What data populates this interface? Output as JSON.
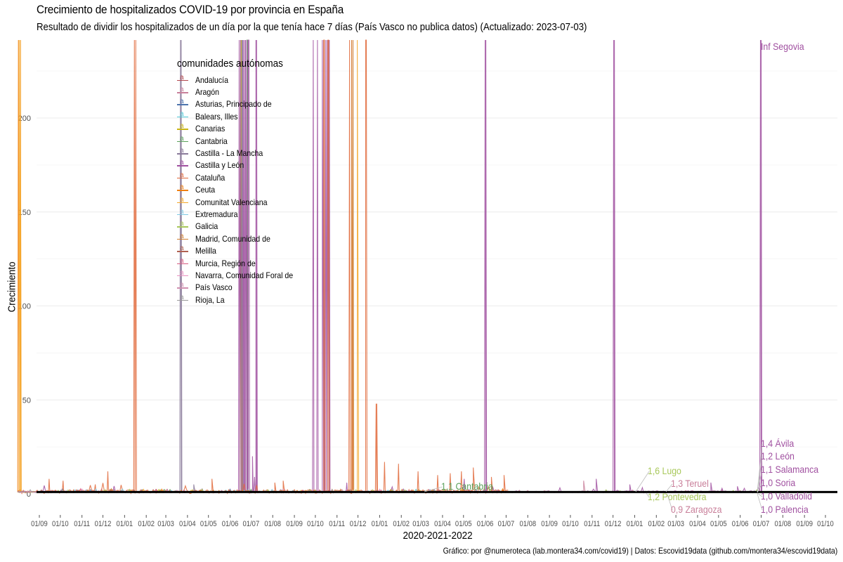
{
  "title": "Crecimiento de hospitalizados COVID-19 por provincia en España",
  "subtitle": "Resultado de dividir los hospitalizados de un día por la que tenía hace 7 días (País Vasco no publica datos) (Actualizado: 2023-07-03)",
  "caption": "Gráfico: por @numeroteca (lab.montera34.com/covid19) | Datos: Escovid19data (github.com/montera34/escovid19data)",
  "chart_data": {
    "type": "line",
    "title": "Crecimiento de hospitalizados COVID-19 por provincia en España",
    "xlabel": "2020-2021-2022",
    "ylabel": "Crecimiento",
    "ylim": [
      0,
      240
    ],
    "xlim": [
      "2020-08-01",
      "2023-10-15"
    ],
    "y_ticks": [
      0,
      50,
      100,
      150,
      200
    ],
    "x_ticks": [
      "01/09",
      "01/10",
      "01/11",
      "01/12",
      "01/01",
      "01/02",
      "01/03",
      "01/04",
      "01/05",
      "01/06",
      "01/07",
      "01/08",
      "01/09",
      "01/10",
      "01/11",
      "01/12",
      "01/01",
      "01/02",
      "01/03",
      "01/04",
      "01/05",
      "01/06",
      "01/07",
      "01/08",
      "01/09",
      "01/10",
      "01/11",
      "01/12",
      "01/01",
      "01/02",
      "01/03",
      "01/04",
      "01/05",
      "01/06",
      "01/07",
      "01/08",
      "01/09",
      "01/10"
    ],
    "x_tick_dates": [
      "2020-09-01",
      "2020-10-01",
      "2020-11-01",
      "2020-12-01",
      "2021-01-01",
      "2021-02-01",
      "2021-03-01",
      "2021-04-01",
      "2021-05-01",
      "2021-06-01",
      "2021-07-01",
      "2021-08-01",
      "2021-09-01",
      "2021-10-01",
      "2021-11-01",
      "2021-12-01",
      "2022-01-01",
      "2022-02-01",
      "2022-03-01",
      "2022-04-01",
      "2022-05-01",
      "2022-06-01",
      "2022-07-01",
      "2022-08-01",
      "2022-09-01",
      "2022-10-01",
      "2022-11-01",
      "2022-12-01",
      "2023-01-01",
      "2023-02-01",
      "2023-03-01",
      "2023-04-01",
      "2023-05-01",
      "2023-06-01",
      "2023-07-01",
      "2023-08-01",
      "2023-09-01",
      "2023-10-01"
    ],
    "grid": true,
    "reference_line": 1,
    "legend": {
      "title": "comunidades autónomas",
      "placement": "top-left (inside plot)",
      "glyph": "a",
      "entries": [
        {
          "name": "Andalucía",
          "color": "#b2474d"
        },
        {
          "name": "Aragón",
          "color": "#c97f9a"
        },
        {
          "name": "Asturias, Principado de",
          "color": "#4d74ad"
        },
        {
          "name": "Balears, Illes",
          "color": "#4dc8d6"
        },
        {
          "name": "Canarias",
          "color": "#c9b515"
        },
        {
          "name": "Cantabria",
          "color": "#5aa05a"
        },
        {
          "name": "Castilla - La Mancha",
          "color": "#8a7a9a"
        },
        {
          "name": "Castilla y León",
          "color": "#a050a0"
        },
        {
          "name": "Cataluña",
          "color": "#e0683a"
        },
        {
          "name": "Ceuta",
          "color": "#f08010"
        },
        {
          "name": "Comunitat Valenciana",
          "color": "#f5a623"
        },
        {
          "name": "Extremadura",
          "color": "#7ec8e3"
        },
        {
          "name": "Galicia",
          "color": "#a8c85a"
        },
        {
          "name": "Madrid, Comunidad de",
          "color": "#d08030"
        },
        {
          "name": "Melilla",
          "color": "#b06050"
        },
        {
          "name": "Murcia, Región de",
          "color": "#d85a80"
        },
        {
          "name": "Navarra, Comunidad Foral de",
          "color": "#e890c0"
        },
        {
          "name": "País Vasco",
          "color": "#d090b0"
        },
        {
          "name": "Rioja, La",
          "color": "#999999"
        }
      ]
    },
    "spikes": [
      {
        "series": "Ceuta",
        "date": "2020-08-02",
        "value": 999,
        "width_days": 3
      },
      {
        "series": "Comunitat Valenciana",
        "date": "2020-08-03",
        "value": 999,
        "width_days": 2
      },
      {
        "series": "Cataluña",
        "date": "2021-01-15",
        "value": 999,
        "width_days": 2
      },
      {
        "series": "Castilla - La Mancha",
        "date": "2021-03-22",
        "value": 999,
        "width_days": 1
      },
      {
        "series": "Castilla y León",
        "date": "2021-06-14",
        "value": 999,
        "width_days": 2
      },
      {
        "series": "Canarias",
        "date": "2021-06-16",
        "value": 999,
        "width_days": 1
      },
      {
        "series": "Castilla - La Mancha",
        "date": "2021-06-18",
        "value": 999,
        "width_days": 1
      },
      {
        "series": "Castilla y León",
        "date": "2021-06-20",
        "value": 999,
        "width_days": 2
      },
      {
        "series": "Castilla y León",
        "date": "2021-06-23",
        "value": 999,
        "width_days": 2
      },
      {
        "series": "Cantabria",
        "date": "2021-06-25",
        "value": 999,
        "width_days": 1
      },
      {
        "series": "Castilla y León",
        "date": "2021-06-27",
        "value": 999,
        "width_days": 1
      },
      {
        "series": "Castilla y León",
        "date": "2021-07-08",
        "value": 999,
        "width_days": 1
      },
      {
        "series": "Castilla y León",
        "date": "2021-09-28",
        "value": 999,
        "width_days": 6
      },
      {
        "series": "Castilla y León",
        "date": "2021-10-11",
        "value": 999,
        "width_days": 2
      },
      {
        "series": "Cataluña",
        "date": "2021-10-13",
        "value": 999,
        "width_days": 1
      },
      {
        "series": "Castilla y León",
        "date": "2021-10-16",
        "value": 999,
        "width_days": 2
      },
      {
        "series": "Cataluña",
        "date": "2021-10-19",
        "value": 999,
        "width_days": 1
      },
      {
        "series": "Castilla y León",
        "date": "2021-10-20",
        "value": 999,
        "width_days": 1
      },
      {
        "series": "Cataluña",
        "date": "2021-11-19",
        "value": 999,
        "width_days": 3
      },
      {
        "series": "Madrid, Comunidad de",
        "date": "2021-11-22",
        "value": 999,
        "width_days": 2
      },
      {
        "series": "Cataluña",
        "date": "2021-12-12",
        "value": 999,
        "width_days": 1
      },
      {
        "series": "Cataluña",
        "date": "2021-12-27",
        "value": 48,
        "width_days": 1
      },
      {
        "series": "Castilla y León",
        "date": "2022-06-01",
        "value": 999,
        "width_days": 1
      },
      {
        "series": "Castilla y León",
        "date": "2022-12-02",
        "value": 999,
        "width_days": 1
      },
      {
        "series": "Castilla y León",
        "date": "2023-06-30",
        "value": 999,
        "width_days": 1,
        "label": "Inf Segovia"
      }
    ],
    "ramps": [
      {
        "series": "Comunitat Valenciana",
        "from": "2021-10-28",
        "to": "2021-11-30",
        "value_from": 1,
        "value_to": 999
      }
    ],
    "bumps": [
      {
        "series": "Cataluña",
        "date": "2020-09-15",
        "value": 8
      },
      {
        "series": "Cataluña",
        "date": "2020-10-05",
        "value": 7
      },
      {
        "series": "Cataluña",
        "date": "2020-11-20",
        "value": 5
      },
      {
        "series": "Cataluña",
        "date": "2020-12-08",
        "value": 12
      },
      {
        "series": "Castilla - La Mancha",
        "date": "2021-04-10",
        "value": 5
      },
      {
        "series": "Cataluña",
        "date": "2021-05-06",
        "value": 8
      },
      {
        "series": "Castilla y León",
        "date": "2021-07-03",
        "value": 20
      },
      {
        "series": "Castilla y León",
        "date": "2021-07-06",
        "value": 9
      },
      {
        "series": "Cataluña",
        "date": "2021-08-04",
        "value": 6
      },
      {
        "series": "Cataluña",
        "date": "2021-08-16",
        "value": 7
      },
      {
        "series": "Castilla y León",
        "date": "2021-11-15",
        "value": 6
      },
      {
        "series": "Cataluña",
        "date": "2022-01-08",
        "value": 17
      },
      {
        "series": "Cataluña",
        "date": "2022-01-28",
        "value": 16
      },
      {
        "series": "Cataluña",
        "date": "2022-02-25",
        "value": 12
      },
      {
        "series": "Cataluña",
        "date": "2022-03-25",
        "value": 10
      },
      {
        "series": "Cataluña",
        "date": "2022-04-12",
        "value": 11
      },
      {
        "series": "Cataluña",
        "date": "2022-04-28",
        "value": 12
      },
      {
        "series": "Castilla y León",
        "date": "2022-05-02",
        "value": 8
      },
      {
        "series": "Cataluña",
        "date": "2022-05-15",
        "value": 14
      },
      {
        "series": "Cataluña",
        "date": "2022-06-10",
        "value": 9
      },
      {
        "series": "Cataluña",
        "date": "2022-06-28",
        "value": 10
      },
      {
        "series": "Aragón",
        "date": "2022-10-20",
        "value": 7
      },
      {
        "series": "Castilla y León",
        "date": "2022-11-07",
        "value": 8
      },
      {
        "series": "Castilla y León",
        "date": "2022-12-25",
        "value": 5
      },
      {
        "series": "Castilla y León",
        "date": "2023-04-20",
        "value": 6
      },
      {
        "series": "Castilla y León",
        "date": "2023-05-28",
        "value": 4
      }
    ],
    "annotations": [
      {
        "text": "1,1 Cantabria",
        "series": "Cantabria",
        "value": 1.1
      },
      {
        "text": "1,6 Lugo",
        "series": "Galicia",
        "value": 1.6
      },
      {
        "text": "1,2 Pontevedra",
        "series": "Galicia",
        "value": 1.2
      },
      {
        "text": "1,3 Teruel",
        "series": "Aragón",
        "value": 1.3
      },
      {
        "text": "0,9 Zaragoza",
        "series": "Aragón",
        "value": 0.9
      },
      {
        "text": "1,4 Ávila",
        "series": "Castilla y León",
        "value": 1.4
      },
      {
        "text": "1,2 León",
        "series": "Castilla y León",
        "value": 1.2
      },
      {
        "text": "1,1 Salamanca",
        "series": "Castilla y León",
        "value": 1.1
      },
      {
        "text": "1,0 Soria",
        "series": "Castilla y León",
        "value": 1.0
      },
      {
        "text": "1,0 Valladolid",
        "series": "Castilla y León",
        "value": 1.0
      },
      {
        "text": "1,0 Palencia",
        "series": "Castilla y León",
        "value": 1.0
      },
      {
        "text": "Inf Segovia",
        "series": "Castilla y León",
        "value": "Inf"
      }
    ]
  }
}
